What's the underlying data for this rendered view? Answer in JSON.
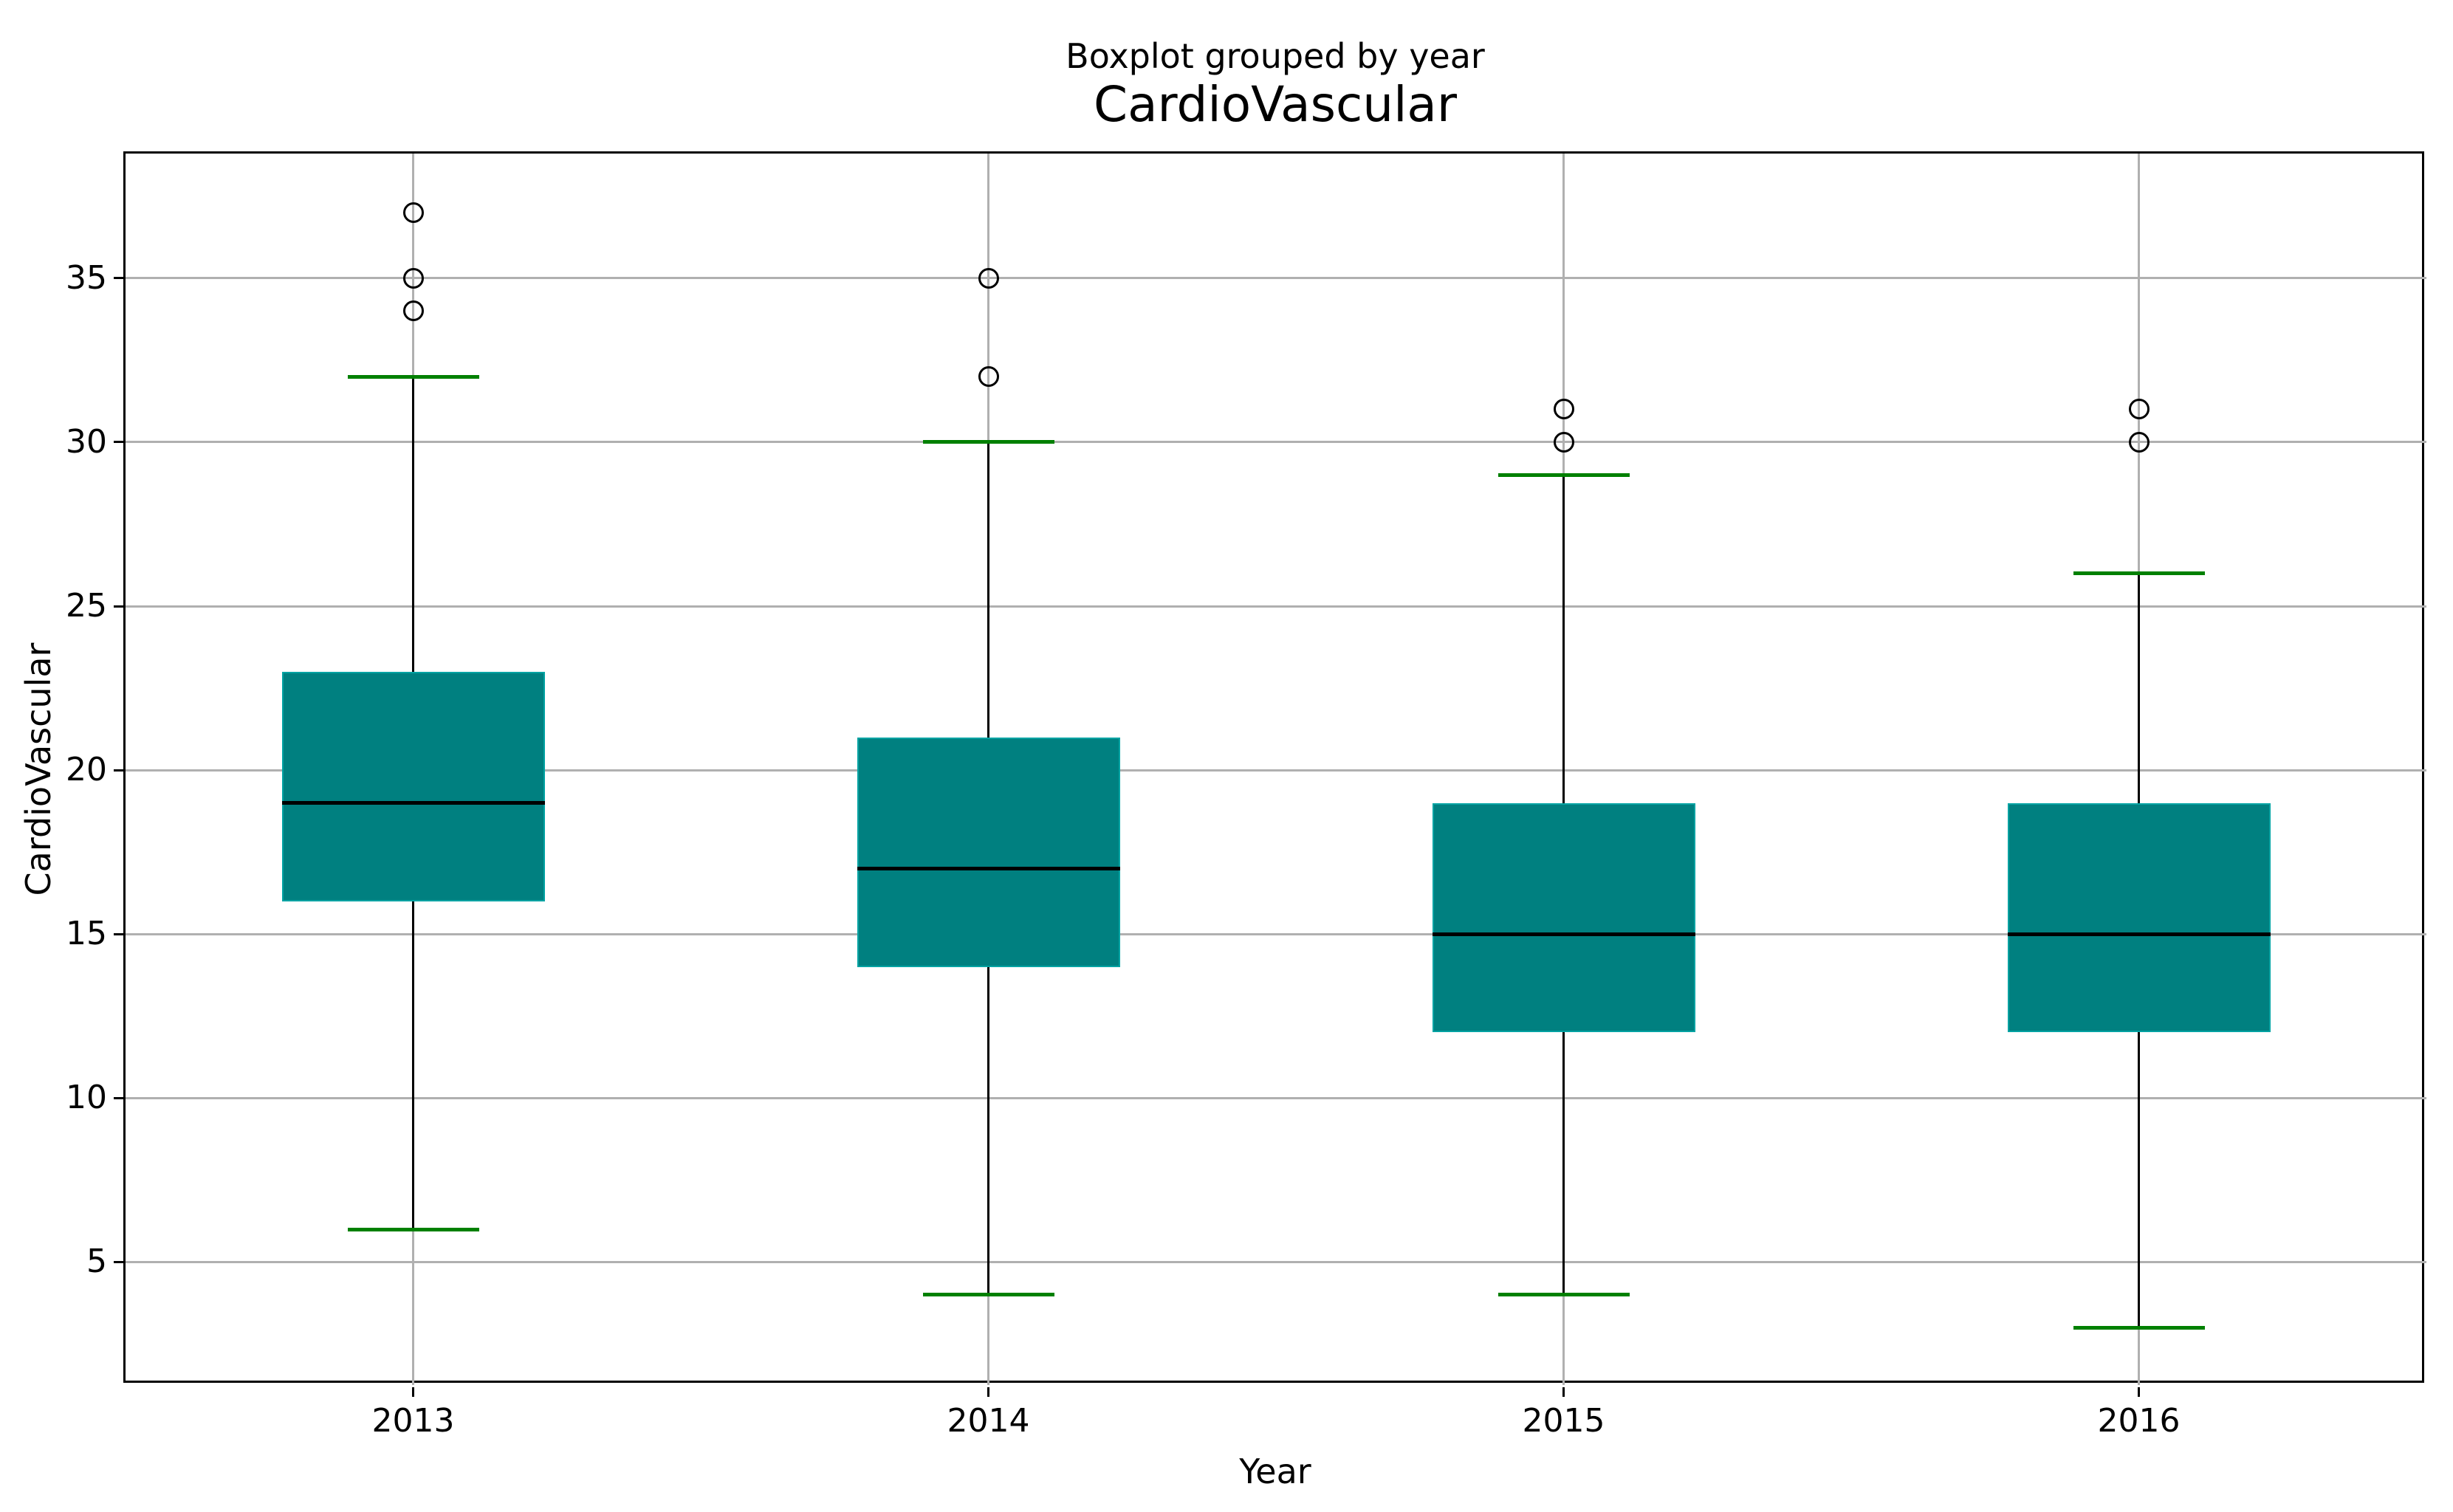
{
  "chart_data": {
    "type": "boxplot",
    "suptitle": "Boxplot grouped by year",
    "title": "CardioVascular",
    "xlabel": "Year",
    "ylabel": "CardioVascular",
    "categories": [
      "2013",
      "2014",
      "2015",
      "2016"
    ],
    "boxes": [
      {
        "category": "2013",
        "whisker_low": 6,
        "q1": 16,
        "median": 19,
        "q3": 23,
        "whisker_high": 32,
        "outliers": [
          34,
          35,
          37
        ]
      },
      {
        "category": "2014",
        "whisker_low": 4,
        "q1": 14,
        "median": 17,
        "q3": 21,
        "whisker_high": 30,
        "outliers": [
          32,
          35
        ]
      },
      {
        "category": "2015",
        "whisker_low": 4,
        "q1": 12,
        "median": 15,
        "q3": 19,
        "whisker_high": 29,
        "outliers": [
          30,
          31
        ]
      },
      {
        "category": "2016",
        "whisker_low": 3,
        "q1": 12,
        "median": 15,
        "q3": 19,
        "whisker_high": 26,
        "outliers": [
          30,
          31
        ]
      }
    ],
    "yticks": [
      5,
      10,
      15,
      20,
      25,
      30,
      35
    ],
    "ylim": [
      1.25,
      38.8
    ],
    "grid": "both",
    "legend": "none",
    "colors": {
      "box_fill": "#008080",
      "box_edge": "#00a3a3",
      "median": "#000000",
      "whisker": "#000000",
      "cap": "#008000",
      "flier_edge": "#000000",
      "grid": "#b0b0b0",
      "spine": "#000000",
      "text": "#000000",
      "background": "#ffffff"
    }
  }
}
